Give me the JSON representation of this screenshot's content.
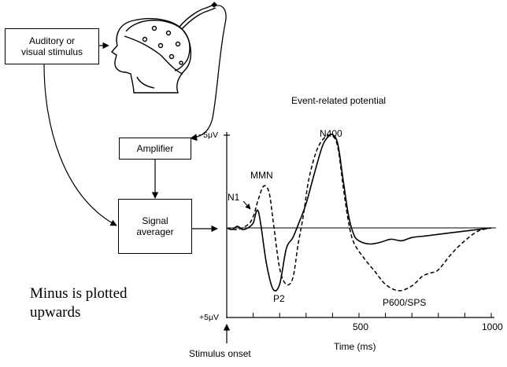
{
  "boxes": {
    "stimulus_line1": "Auditory or",
    "stimulus_line2": "visual stimulus",
    "amplifier": "Amplifier",
    "averager_line1": "Signal",
    "averager_line2": "averager"
  },
  "chart_title": "Event-related potential",
  "y_axis": {
    "top_label": "−5μV",
    "bottom_label": "+5μV"
  },
  "x_axis": {
    "title": "Time (ms)",
    "ticks": [
      "500",
      "1000"
    ],
    "onset_label": "Stimulus onset"
  },
  "components": {
    "n1": "N1",
    "mmn": "MMN",
    "n400": "N400",
    "p2": "P2",
    "p600": "P600/SPS"
  },
  "note": {
    "line1": "Minus is plotted",
    "line2": "upwards"
  },
  "chart_data": {
    "type": "line",
    "title": "Event-related potential",
    "xlabel": "Time (ms)",
    "xlim": [
      0,
      1000
    ],
    "ylim": [
      5,
      -5
    ],
    "y_axis_inverted": true,
    "series": [
      {
        "style": "solid",
        "x": [
          0,
          20,
          40,
          60,
          80,
          100,
          120,
          150,
          175,
          200,
          225,
          250,
          275,
          300,
          330,
          360,
          380,
          400,
          420,
          440,
          460,
          480,
          500,
          540,
          580,
          620,
          660,
          700,
          750,
          800,
          850,
          900,
          950,
          1000
        ],
        "y": [
          0,
          0.1,
          -0.1,
          0.1,
          0,
          -0.3,
          -1.0,
          2.2,
          3.8,
          3.5,
          1.3,
          0.6,
          -0.4,
          -1.5,
          -3.3,
          -5.0,
          -5.6,
          -5.8,
          -5.2,
          -3.0,
          -0.8,
          0.4,
          0.8,
          1.0,
          0.9,
          0.7,
          0.8,
          0.6,
          0.5,
          0.4,
          0.3,
          0.2,
          0.1,
          0
        ]
      },
      {
        "style": "dashed",
        "x": [
          0,
          40,
          80,
          100,
          120,
          140,
          160,
          175,
          200,
          225,
          250,
          270,
          290,
          310,
          340,
          370,
          400,
          420,
          440,
          460,
          480,
          520,
          560,
          600,
          650,
          700,
          740,
          770,
          800,
          850,
          900,
          950,
          1000
        ],
        "y": [
          0,
          0.1,
          -0.2,
          -0.7,
          -1.8,
          -2.6,
          -2.2,
          -0.5,
          2.5,
          3.5,
          3.1,
          1.0,
          -0.8,
          -3.0,
          -4.8,
          -5.6,
          -5.7,
          -5.0,
          -2.6,
          -0.4,
          0.9,
          1.9,
          2.7,
          3.5,
          3.9,
          3.6,
          3.0,
          2.8,
          2.6,
          1.6,
          0.8,
          0.2,
          0
        ]
      }
    ]
  }
}
